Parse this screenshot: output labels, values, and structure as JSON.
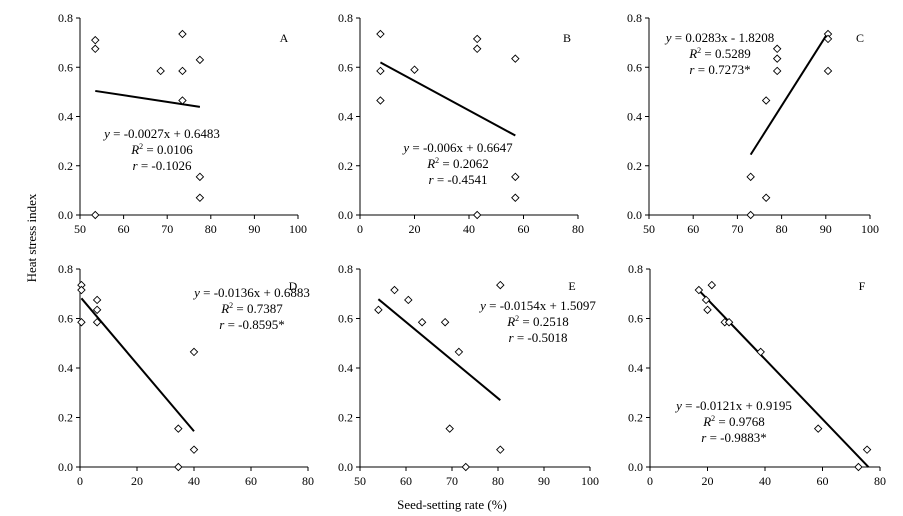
{
  "figure": {
    "ylabel": "Heat stress index",
    "xlabel": "Seed-setting rate (%)"
  },
  "chart_data": [
    {
      "type": "scatter",
      "letter": "A",
      "xlim": [
        50,
        100
      ],
      "ylim": [
        0,
        0.8
      ],
      "xticks": [
        "50",
        "60",
        "70",
        "80",
        "90",
        "100"
      ],
      "yticks": [
        "0.0",
        "0.2",
        "0.4",
        "0.6",
        "0.8"
      ],
      "points": [
        [
          53.5,
          0.0
        ],
        [
          53.5,
          0.675
        ],
        [
          53.5,
          0.71
        ],
        [
          68.5,
          0.585
        ],
        [
          73.5,
          0.585
        ],
        [
          73.5,
          0.465
        ],
        [
          73.5,
          0.735
        ],
        [
          77.5,
          0.63
        ],
        [
          77.5,
          0.155
        ],
        [
          77.5,
          0.07
        ]
      ],
      "fit": {
        "slope": -0.0027,
        "intercept": 0.6483,
        "x_range": [
          53.5,
          77.5
        ]
      },
      "equation": "= -0.0027x + 0.6483",
      "r2": "= 0.0106",
      "r": "= -0.1026"
    },
    {
      "type": "scatter",
      "letter": "B",
      "xlim": [
        0,
        80
      ],
      "ylim": [
        0,
        0.8
      ],
      "xticks": [
        "0",
        "20",
        "40",
        "60",
        "80"
      ],
      "yticks": [
        "0.0",
        "0.2",
        "0.4",
        "0.6",
        "0.8"
      ],
      "points": [
        [
          7.5,
          0.735
        ],
        [
          7.5,
          0.585
        ],
        [
          7.5,
          0.465
        ],
        [
          20,
          0.59
        ],
        [
          43,
          0.715
        ],
        [
          43,
          0.675
        ],
        [
          43,
          0.0
        ],
        [
          57,
          0.635
        ],
        [
          57,
          0.155
        ],
        [
          57,
          0.07
        ]
      ],
      "fit": {
        "slope": -0.006,
        "intercept": 0.6647,
        "x_range": [
          7.5,
          57
        ]
      },
      "equation": "= -0.006x + 0.6647",
      "r2": "= 0.2062",
      "r": "= -0.4541"
    },
    {
      "type": "scatter",
      "letter": "C",
      "xlim": [
        50,
        100
      ],
      "ylim": [
        0,
        0.8
      ],
      "xticks": [
        "50",
        "60",
        "70",
        "80",
        "90",
        "100"
      ],
      "yticks": [
        "0.0",
        "0.2",
        "0.4",
        "0.6",
        "0.8"
      ],
      "points": [
        [
          73,
          0.0
        ],
        [
          73,
          0.155
        ],
        [
          76.5,
          0.07
        ],
        [
          76.5,
          0.465
        ],
        [
          79,
          0.675
        ],
        [
          79,
          0.635
        ],
        [
          79,
          0.585
        ],
        [
          90.5,
          0.735
        ],
        [
          90.5,
          0.715
        ],
        [
          90.5,
          0.585
        ]
      ],
      "fit": {
        "slope": 0.0283,
        "intercept": -1.8208,
        "x_range": [
          73,
          90.5
        ]
      },
      "equation": "= 0.0283x - 1.8208",
      "r2": "= 0.5289",
      "r": "= 0.7273*"
    },
    {
      "type": "scatter",
      "letter": "D",
      "xlim": [
        0,
        80
      ],
      "ylim": [
        0,
        0.8
      ],
      "xticks": [
        "0",
        "20",
        "40",
        "60",
        "80"
      ],
      "yticks": [
        "0.0",
        "0.2",
        "0.4",
        "0.6",
        "0.8"
      ],
      "points": [
        [
          0.5,
          0.735
        ],
        [
          0.5,
          0.715
        ],
        [
          0.5,
          0.585
        ],
        [
          6,
          0.675
        ],
        [
          6,
          0.635
        ],
        [
          6,
          0.585
        ],
        [
          34.5,
          0.155
        ],
        [
          34.5,
          0.0
        ],
        [
          40,
          0.465
        ],
        [
          40,
          0.07
        ]
      ],
      "fit": {
        "slope": -0.0136,
        "intercept": 0.6883,
        "x_range": [
          0.5,
          40
        ]
      },
      "equation": "= -0.0136x + 0.6883",
      "r2": "= 0.7387",
      "r": "= -0.8595*"
    },
    {
      "type": "scatter",
      "letter": "E",
      "xlim": [
        50,
        100
      ],
      "ylim": [
        0,
        0.8
      ],
      "xticks": [
        "50",
        "60",
        "70",
        "80",
        "90",
        "100"
      ],
      "yticks": [
        "0.0",
        "0.2",
        "0.4",
        "0.6",
        "0.8"
      ],
      "points": [
        [
          54,
          0.635
        ],
        [
          57.5,
          0.715
        ],
        [
          60.5,
          0.675
        ],
        [
          63.5,
          0.585
        ],
        [
          68.5,
          0.585
        ],
        [
          69.5,
          0.155
        ],
        [
          71.5,
          0.465
        ],
        [
          73,
          0.0
        ],
        [
          80.5,
          0.735
        ],
        [
          80.5,
          0.07
        ]
      ],
      "fit": {
        "slope": -0.0154,
        "intercept": 1.5097,
        "x_range": [
          54,
          80.5
        ]
      },
      "equation": "= -0.0154x + 1.5097",
      "r2": "= 0.2518",
      "r": "= -0.5018"
    },
    {
      "type": "scatter",
      "letter": "F",
      "xlim": [
        0,
        80
      ],
      "ylim": [
        0,
        0.8
      ],
      "xticks": [
        "0",
        "20",
        "40",
        "60",
        "80"
      ],
      "yticks": [
        "0.0",
        "0.2",
        "0.4",
        "0.6",
        "0.8"
      ],
      "points": [
        [
          17,
          0.715
        ],
        [
          19.5,
          0.675
        ],
        [
          20,
          0.635
        ],
        [
          21.5,
          0.735
        ],
        [
          26,
          0.585
        ],
        [
          27.5,
          0.585
        ],
        [
          38.5,
          0.465
        ],
        [
          58.5,
          0.155
        ],
        [
          72.5,
          0.0
        ],
        [
          75.5,
          0.07
        ]
      ],
      "fit": {
        "slope": -0.0121,
        "intercept": 0.9195,
        "x_range": [
          17,
          76
        ]
      },
      "equation": "= -0.0121x + 0.9195",
      "r2": "= 0.9768",
      "r": "= -0.9883*"
    }
  ]
}
